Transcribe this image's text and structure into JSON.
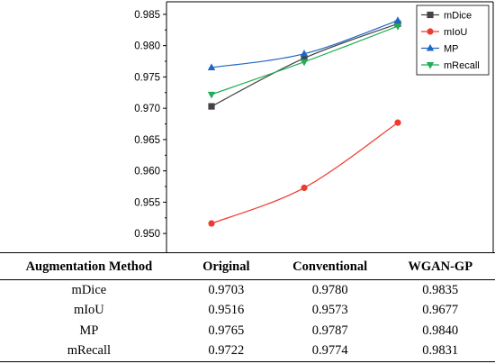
{
  "chart_data": {
    "type": "line",
    "x_categories": [
      "Original",
      "Conventional",
      "WGAN-GP"
    ],
    "ylim": [
      0.947,
      0.987
    ],
    "yticks": [
      "0.950",
      "0.955",
      "0.960",
      "0.965",
      "0.970",
      "0.975",
      "0.980",
      "0.985"
    ],
    "legend_position": "top-right",
    "grid": false,
    "series": [
      {
        "name": "mDice",
        "values": [
          0.9703,
          0.978,
          0.9835
        ],
        "color": "#444444",
        "marker": "square"
      },
      {
        "name": "mIoU",
        "values": [
          0.9516,
          0.9573,
          0.9677
        ],
        "color": "#ee3b2f",
        "marker": "circle"
      },
      {
        "name": "MP",
        "values": [
          0.9765,
          0.9787,
          0.984
        ],
        "color": "#1f66c4",
        "marker": "triangle-up"
      },
      {
        "name": "mRecall",
        "values": [
          0.9722,
          0.9774,
          0.9831
        ],
        "color": "#1fae55",
        "marker": "triangle-down"
      }
    ]
  },
  "table": {
    "headers": [
      "Augmentation Method",
      "Original",
      "Conventional",
      "WGAN-GP"
    ],
    "rows": [
      [
        "mDice",
        "0.9703",
        "0.9780",
        "0.9835"
      ],
      [
        "mIoU",
        "0.9516",
        "0.9573",
        "0.9677"
      ],
      [
        "MP",
        "0.9765",
        "0.9787",
        "0.9840"
      ],
      [
        "mRecall",
        "0.9722",
        "0.9774",
        "0.9831"
      ]
    ]
  }
}
